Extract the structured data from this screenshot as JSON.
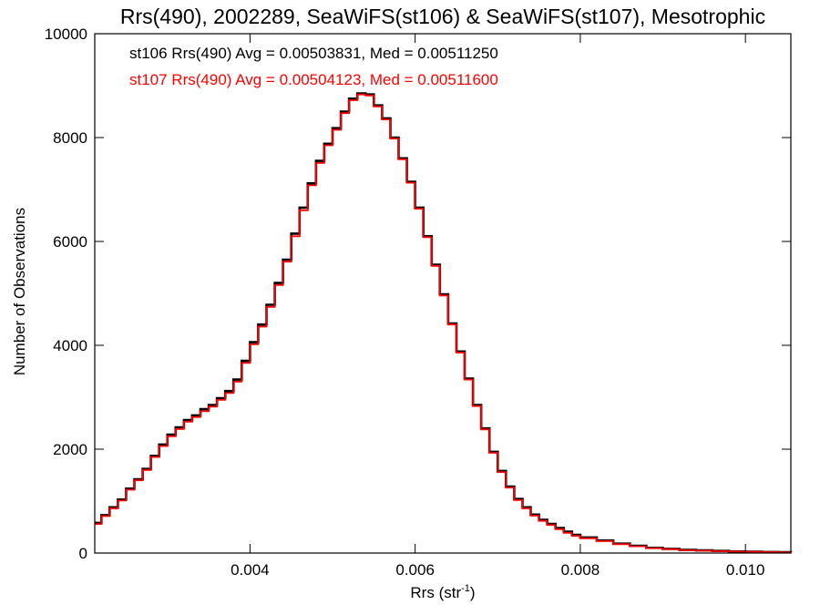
{
  "chart_data": {
    "type": "line",
    "step": true,
    "title": "Rrs(490), 2002289, SeaWiFS(st106) & SeaWiFS(st107), Mesotrophic",
    "xlabel": "Rrs (str",
    "xlabel_sup": "-1",
    "xlabel_end": ")",
    "ylabel": "Number of Observations",
    "xlim": [
      0.00212,
      0.01055
    ],
    "ylim": [
      0,
      10000
    ],
    "x_ticks": [
      0.004,
      0.006,
      0.008,
      0.01
    ],
    "x_tick_labels": [
      "0.004",
      "0.006",
      "0.008",
      "0.010"
    ],
    "y_ticks": [
      0,
      2000,
      4000,
      6000,
      8000,
      10000
    ],
    "y_tick_labels": [
      "0",
      "2000",
      "4000",
      "6000",
      "8000",
      "10000"
    ],
    "grid": false,
    "annotations": [
      {
        "text": "st106 Rrs(490) Avg = 0.00503831, Med = 0.00511250",
        "color": "#000000"
      },
      {
        "text": "st107 Rrs(490) Avg = 0.00504123, Med = 0.00511600",
        "color": "#ff0000"
      }
    ],
    "series": [
      {
        "color": "#000000",
        "x": [
          0.00212,
          0.0022,
          0.0023,
          0.0024,
          0.0025,
          0.0026,
          0.0027,
          0.0028,
          0.0029,
          0.003,
          0.0031,
          0.0032,
          0.0033,
          0.0034,
          0.0035,
          0.0036,
          0.0037,
          0.0038,
          0.0039,
          0.004,
          0.0041,
          0.0042,
          0.0043,
          0.0044,
          0.0045,
          0.0046,
          0.0047,
          0.0048,
          0.0049,
          0.005,
          0.0051,
          0.0052,
          0.0053,
          0.0054,
          0.0055,
          0.0056,
          0.0057,
          0.0058,
          0.0059,
          0.006,
          0.0061,
          0.0062,
          0.0063,
          0.0064,
          0.0065,
          0.0066,
          0.0067,
          0.0068,
          0.0069,
          0.007,
          0.0071,
          0.0072,
          0.0073,
          0.0074,
          0.0075,
          0.0076,
          0.0077,
          0.0078,
          0.0079,
          0.008,
          0.0082,
          0.0084,
          0.0086,
          0.0088,
          0.009,
          0.0092,
          0.0094,
          0.0096,
          0.0098,
          0.01,
          0.0102,
          0.0104,
          0.01055
        ],
        "y": [
          580,
          730,
          880,
          1030,
          1240,
          1420,
          1620,
          1870,
          2090,
          2280,
          2420,
          2560,
          2650,
          2770,
          2850,
          2980,
          3120,
          3340,
          3700,
          4060,
          4400,
          4780,
          5200,
          5650,
          6150,
          6650,
          7120,
          7550,
          7880,
          8180,
          8500,
          8750,
          8850,
          8830,
          8620,
          8370,
          8000,
          7600,
          7150,
          6650,
          6100,
          5550,
          4980,
          4420,
          3880,
          3360,
          2850,
          2400,
          1950,
          1580,
          1280,
          1040,
          880,
          740,
          640,
          560,
          480,
          410,
          350,
          300,
          240,
          180,
          140,
          100,
          80,
          60,
          50,
          40,
          30,
          25,
          20,
          15,
          10
        ]
      },
      {
        "color": "#ff0000",
        "x": [
          0.00212,
          0.0022,
          0.0023,
          0.0024,
          0.0025,
          0.0026,
          0.0027,
          0.0028,
          0.0029,
          0.003,
          0.0031,
          0.0032,
          0.0033,
          0.0034,
          0.0035,
          0.0036,
          0.0037,
          0.0038,
          0.0039,
          0.004,
          0.0041,
          0.0042,
          0.0043,
          0.0044,
          0.0045,
          0.0046,
          0.0047,
          0.0048,
          0.0049,
          0.005,
          0.0051,
          0.0052,
          0.0053,
          0.0054,
          0.0055,
          0.0056,
          0.0057,
          0.0058,
          0.0059,
          0.006,
          0.0061,
          0.0062,
          0.0063,
          0.0064,
          0.0065,
          0.0066,
          0.0067,
          0.0068,
          0.0069,
          0.007,
          0.0071,
          0.0072,
          0.0073,
          0.0074,
          0.0075,
          0.0076,
          0.0077,
          0.0078,
          0.0079,
          0.008,
          0.0082,
          0.0084,
          0.0086,
          0.0088,
          0.009,
          0.0092,
          0.0094,
          0.0096,
          0.0098,
          0.01,
          0.0102,
          0.0104,
          0.01055
        ],
        "y": [
          560,
          710,
          860,
          1010,
          1220,
          1400,
          1600,
          1850,
          2060,
          2250,
          2390,
          2530,
          2620,
          2730,
          2820,
          2950,
          3080,
          3300,
          3660,
          4020,
          4360,
          4740,
          5160,
          5610,
          6100,
          6600,
          7080,
          7510,
          7850,
          8150,
          8470,
          8720,
          8830,
          8810,
          8600,
          8350,
          7980,
          7580,
          7130,
          6630,
          6080,
          5530,
          4960,
          4400,
          3860,
          3340,
          2830,
          2380,
          1930,
          1560,
          1260,
          1020,
          860,
          720,
          620,
          540,
          460,
          390,
          330,
          285,
          230,
          170,
          130,
          95,
          75,
          55,
          45,
          35,
          28,
          22,
          18,
          12,
          8
        ]
      }
    ]
  }
}
